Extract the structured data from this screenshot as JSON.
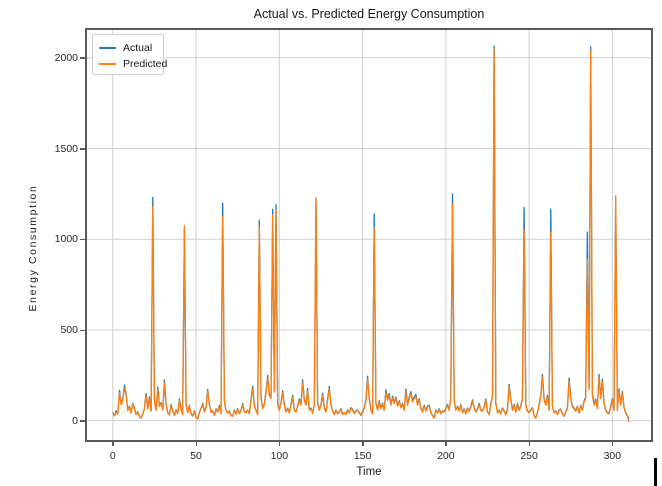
{
  "chart_data": {
    "type": "line",
    "title": "Actual vs. Predicted Energy Consumption",
    "xlabel": "Time",
    "ylabel": "Energy Consumption",
    "grid": true,
    "legend_position": "upper-left",
    "xlim": [
      -15.5,
      323.2
    ],
    "ylim": [
      -106,
      2153
    ],
    "xticks": [
      0,
      50,
      100,
      150,
      200,
      250,
      300
    ],
    "xtick_labels": [
      "0",
      "50",
      "100",
      "150",
      "200",
      "250",
      "300"
    ],
    "yticks": [
      0,
      500,
      1000,
      1500,
      2000
    ],
    "ytick_labels": [
      "0",
      "500",
      "1000",
      "1500",
      "2000"
    ],
    "x_start": 0,
    "x_step": 1,
    "grid_color": "#cfcfcf",
    "spine_color": "#59595c",
    "series": [
      {
        "name": "Actual",
        "color": "#1f77b4",
        "values": [
          45,
          28,
          55,
          38,
          168,
          92,
          120,
          196,
          148,
          58,
          80,
          45,
          95,
          68,
          35,
          50,
          22,
          15,
          40,
          66,
          150,
          70,
          132,
          55,
          1230,
          118,
          60,
          186,
          82,
          100,
          62,
          224,
          90,
          45,
          34,
          90,
          55,
          30,
          60,
          42,
          120,
          66,
          36,
          1060,
          90,
          46,
          86,
          40,
          26,
          55,
          20,
          10,
          46,
          70,
          96,
          50,
          76,
          172,
          92,
          48,
          56,
          30,
          66,
          50,
          85,
          40,
          1200,
          110,
          60,
          42,
          55,
          30,
          26,
          60,
          36,
          66,
          40,
          56,
          95,
          50,
          46,
          60,
          40,
          120,
          190,
          80,
          60,
          35,
          1105,
          130,
          70,
          92,
          160,
          250,
          150,
          130,
          1165,
          170,
          1190,
          90,
          60,
          100,
          165,
          90,
          50,
          70,
          45,
          90,
          140,
          60,
          50,
          80,
          120,
          90,
          225,
          120,
          90,
          178,
          60,
          70,
          42,
          90,
          1215,
          100,
          60,
          90,
          150,
          70,
          50,
          120,
          190,
          90,
          56,
          35,
          60,
          40,
          50,
          66,
          36,
          46,
          35,
          60,
          45,
          72,
          64,
          40,
          56,
          60,
          45,
          30,
          50,
          72,
          115,
          245,
          130,
          60,
          40,
          1140,
          100,
          60,
          110,
          70,
          96,
          60,
          170,
          120,
          150,
          90,
          136,
          100,
          130,
          85,
          110,
          75,
          95,
          60,
          175,
          90,
          130,
          160,
          110,
          130,
          146,
          90,
          120,
          70,
          50,
          85,
          55,
          80,
          85,
          45,
          30,
          15,
          60,
          45,
          66,
          40,
          55,
          50,
          70,
          90,
          60,
          130,
          1250,
          110,
          60,
          80,
          55,
          90,
          45,
          66,
          40,
          70,
          55,
          80,
          115,
          70,
          50,
          65,
          95,
          60,
          55,
          75,
          120,
          50,
          35,
          90,
          140,
          2065,
          100,
          45,
          60,
          40,
          70,
          55,
          35,
          66,
          200,
          120,
          60,
          90,
          50,
          95,
          60,
          80,
          130,
          1175,
          90,
          55,
          45,
          60,
          72,
          30,
          15,
          45,
          90,
          140,
          255,
          120,
          90,
          140,
          60,
          1165,
          85,
          45,
          55,
          35,
          60,
          65,
          40,
          25,
          50,
          70,
          235,
          130,
          80,
          70,
          55,
          80,
          45,
          85,
          60,
          110,
          130,
          1040,
          180,
          2060,
          150,
          90,
          120,
          70,
          255,
          130,
          230,
          100,
          60,
          45,
          40,
          80,
          120,
          60,
          1225,
          60,
          175,
          90,
          160,
          75,
          45,
          25,
          12
        ]
      },
      {
        "name": "Predicted",
        "color": "#ff7f0e",
        "values": [
          42,
          26,
          50,
          36,
          155,
          88,
          112,
          182,
          140,
          55,
          75,
          42,
          90,
          64,
          33,
          47,
          20,
          14,
          38,
          62,
          140,
          66,
          124,
          52,
          1180,
          110,
          57,
          174,
          78,
          95,
          58,
          210,
          85,
          43,
          32,
          85,
          52,
          28,
          57,
          40,
          113,
          62,
          34,
          1075,
          85,
          44,
          81,
          38,
          25,
          52,
          19,
          10,
          44,
          66,
          90,
          47,
          72,
          160,
          87,
          45,
          53,
          28,
          62,
          47,
          80,
          38,
          1125,
          104,
          57,
          40,
          52,
          28,
          25,
          57,
          34,
          62,
          38,
          53,
          89,
          47,
          44,
          57,
          38,
          112,
          178,
          76,
          57,
          33,
          1070,
          122,
          66,
          87,
          150,
          235,
          140,
          122,
          1135,
          158,
          1160,
          85,
          57,
          94,
          155,
          85,
          47,
          66,
          42,
          85,
          130,
          57,
          47,
          75,
          112,
          85,
          210,
          112,
          85,
          166,
          57,
          66,
          40,
          85,
          1230,
          94,
          57,
          85,
          140,
          66,
          47,
          112,
          178,
          85,
          53,
          33,
          57,
          38,
          47,
          62,
          34,
          44,
          33,
          57,
          42,
          68,
          60,
          38,
          53,
          57,
          42,
          28,
          47,
          68,
          108,
          230,
          122,
          57,
          38,
          1065,
          94,
          57,
          104,
          66,
          90,
          57,
          158,
          112,
          140,
          85,
          127,
          94,
          122,
          80,
          104,
          71,
          89,
          57,
          163,
          85,
          122,
          150,
          104,
          122,
          136,
          85,
          112,
          66,
          47,
          80,
          52,
          75,
          80,
          42,
          28,
          14,
          57,
          42,
          62,
          38,
          52,
          47,
          66,
          85,
          57,
          122,
          1195,
          104,
          57,
          75,
          52,
          85,
          42,
          62,
          38,
          66,
          52,
          75,
          108,
          66,
          47,
          62,
          89,
          57,
          52,
          71,
          112,
          47,
          33,
          85,
          132,
          2045,
          94,
          42,
          57,
          38,
          66,
          52,
          33,
          62,
          188,
          112,
          57,
          85,
          47,
          89,
          57,
          75,
          122,
          1050,
          85,
          52,
          42,
          57,
          68,
          28,
          14,
          42,
          85,
          132,
          240,
          112,
          85,
          132,
          57,
          1040,
          80,
          42,
          52,
          33,
          57,
          62,
          38,
          24,
          47,
          66,
          220,
          122,
          75,
          66,
          52,
          75,
          42,
          80,
          57,
          104,
          122,
          890,
          170,
          2040,
          140,
          85,
          112,
          66,
          240,
          122,
          215,
          94,
          57,
          42,
          38,
          75,
          112,
          57,
          1240,
          57,
          165,
          85,
          150,
          71,
          42,
          23,
          -8
        ]
      }
    ]
  },
  "artifacts": {
    "text_cursor": "visible"
  }
}
